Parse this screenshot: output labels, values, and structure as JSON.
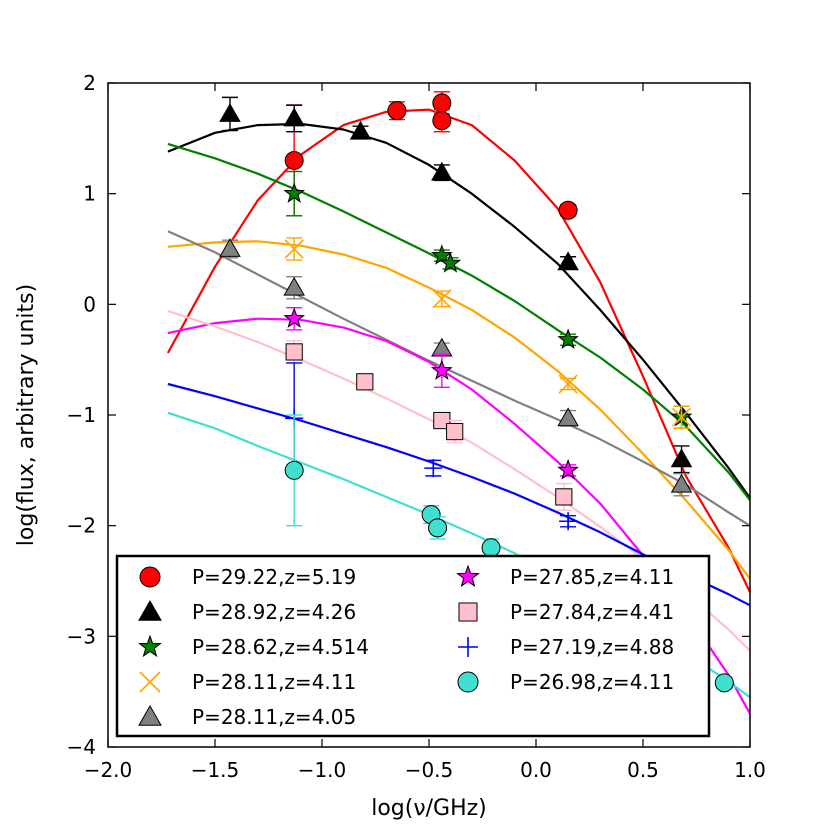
{
  "chart_data": {
    "type": "scatter",
    "xlabel": "log(ν/GHz)",
    "ylabel": "log(flux, arbitrary units)",
    "xlim": [
      -2.0,
      1.0
    ],
    "ylim": [
      -4,
      2
    ],
    "x_ticks": [
      "−2.0",
      "−1.5",
      "−1.0",
      "−0.5",
      "0.0",
      "0.5",
      "1.0"
    ],
    "x_tick_values": [
      -2.0,
      -1.5,
      -1.0,
      -0.5,
      0.0,
      0.5,
      1.0
    ],
    "y_ticks": [
      "−4",
      "−3",
      "−2",
      "−1",
      "0",
      "1",
      "2"
    ],
    "y_tick_values": [
      -4,
      -3,
      -2,
      -1,
      0,
      1,
      2
    ],
    "grid": false,
    "legend_position": "lower-center",
    "series": [
      {
        "name": "P=29.22,z=5.19",
        "marker": "circle",
        "color": "#ff0000",
        "points": [
          [
            -1.13,
            1.3,
            0.5
          ],
          [
            -0.65,
            1.75,
            0.08
          ],
          [
            -0.44,
            1.82,
            0.1
          ],
          [
            -0.44,
            1.66,
            0.1
          ],
          [
            0.15,
            0.85,
            0.05
          ]
        ],
        "curve": [
          [
            -1.72,
            -0.44
          ],
          [
            -1.5,
            0.34
          ],
          [
            -1.3,
            0.94
          ],
          [
            -1.1,
            1.35
          ],
          [
            -0.9,
            1.62
          ],
          [
            -0.7,
            1.74
          ],
          [
            -0.5,
            1.76
          ],
          [
            -0.3,
            1.62
          ],
          [
            -0.1,
            1.3
          ],
          [
            0.1,
            0.87
          ],
          [
            0.3,
            0.2
          ],
          [
            0.5,
            -0.65
          ],
          [
            0.7,
            -1.55
          ],
          [
            0.9,
            -2.2
          ],
          [
            1.0,
            -2.6
          ]
        ]
      },
      {
        "name": "P=28.92,z=4.26",
        "marker": "triangle",
        "color": "#000000",
        "points": [
          [
            -1.43,
            1.72,
            0.15
          ],
          [
            -1.13,
            1.68,
            0.12
          ],
          [
            -0.82,
            1.56,
            0.05
          ],
          [
            -0.44,
            1.19,
            0.07
          ],
          [
            0.15,
            0.38,
            0.05
          ],
          [
            0.68,
            -1.4,
            0.12
          ]
        ],
        "curve": [
          [
            -1.72,
            1.38
          ],
          [
            -1.5,
            1.55
          ],
          [
            -1.3,
            1.62
          ],
          [
            -1.1,
            1.63
          ],
          [
            -0.9,
            1.58
          ],
          [
            -0.7,
            1.46
          ],
          [
            -0.5,
            1.26
          ],
          [
            -0.3,
            1.0
          ],
          [
            -0.1,
            0.7
          ],
          [
            0.1,
            0.37
          ],
          [
            0.3,
            -0.05
          ],
          [
            0.5,
            -0.5
          ],
          [
            0.7,
            -0.98
          ],
          [
            0.9,
            -1.48
          ],
          [
            1.0,
            -1.75
          ]
        ]
      },
      {
        "name": "P=28.62,z=4.514",
        "marker": "star",
        "color": "#008000",
        "points": [
          [
            -1.13,
            1.0,
            0.2
          ],
          [
            -0.44,
            0.44,
            0.05
          ],
          [
            -0.4,
            0.37,
            0.05
          ],
          [
            0.15,
            -0.32,
            0.05
          ],
          [
            0.68,
            -1.02,
            0.1
          ]
        ],
        "curve": [
          [
            -1.72,
            1.45
          ],
          [
            -1.5,
            1.32
          ],
          [
            -1.3,
            1.18
          ],
          [
            -1.1,
            1.02
          ],
          [
            -0.9,
            0.84
          ],
          [
            -0.7,
            0.65
          ],
          [
            -0.5,
            0.46
          ],
          [
            -0.3,
            0.26
          ],
          [
            -0.1,
            0.03
          ],
          [
            0.1,
            -0.23
          ],
          [
            0.3,
            -0.48
          ],
          [
            0.5,
            -0.77
          ],
          [
            0.7,
            -1.1
          ],
          [
            0.9,
            -1.52
          ],
          [
            1.0,
            -1.77
          ]
        ]
      },
      {
        "name": "P=28.11,z=4.11",
        "marker": "x",
        "color": "#ffa500",
        "points": [
          [
            -1.13,
            0.5,
            0.1
          ],
          [
            -0.44,
            0.05,
            0.07
          ],
          [
            0.15,
            -0.72,
            0.05
          ],
          [
            0.68,
            -1.02,
            0.1
          ]
        ],
        "curve": [
          [
            -1.72,
            0.52
          ],
          [
            -1.5,
            0.56
          ],
          [
            -1.3,
            0.57
          ],
          [
            -1.1,
            0.53
          ],
          [
            -0.9,
            0.45
          ],
          [
            -0.7,
            0.33
          ],
          [
            -0.5,
            0.15
          ],
          [
            -0.3,
            -0.05
          ],
          [
            -0.1,
            -0.3
          ],
          [
            0.1,
            -0.6
          ],
          [
            0.3,
            -0.95
          ],
          [
            0.5,
            -1.35
          ],
          [
            0.7,
            -1.77
          ],
          [
            0.9,
            -2.22
          ],
          [
            1.0,
            -2.48
          ]
        ]
      },
      {
        "name": "P=28.11,z=4.05",
        "marker": "triangle",
        "color": "#808080",
        "points": [
          [
            -1.43,
            0.5,
            0.08
          ],
          [
            -1.13,
            0.15,
            0.1
          ],
          [
            -0.44,
            -0.4,
            0.05
          ],
          [
            0.15,
            -1.03,
            0.07
          ],
          [
            0.68,
            -1.63,
            0.1
          ]
        ],
        "curve": [
          [
            -1.72,
            0.66
          ],
          [
            -1.5,
            0.47
          ],
          [
            -1.3,
            0.27
          ],
          [
            -1.1,
            0.07
          ],
          [
            -0.9,
            -0.13
          ],
          [
            -0.7,
            -0.32
          ],
          [
            -0.5,
            -0.51
          ],
          [
            -0.3,
            -0.69
          ],
          [
            -0.1,
            -0.87
          ],
          [
            0.1,
            -1.04
          ],
          [
            0.3,
            -1.22
          ],
          [
            0.5,
            -1.42
          ],
          [
            0.7,
            -1.63
          ],
          [
            0.9,
            -1.88
          ],
          [
            1.0,
            -2.0
          ]
        ]
      },
      {
        "name": "P=27.85,z=4.11",
        "marker": "star",
        "color": "#ff00ff",
        "points": [
          [
            -1.13,
            -0.13,
            0.1
          ],
          [
            -0.44,
            -0.6,
            0.15
          ],
          [
            0.15,
            -1.5,
            0.05
          ]
        ],
        "curve": [
          [
            -1.72,
            -0.26
          ],
          [
            -1.5,
            -0.17
          ],
          [
            -1.3,
            -0.13
          ],
          [
            -1.1,
            -0.14
          ],
          [
            -0.9,
            -0.21
          ],
          [
            -0.7,
            -0.33
          ],
          [
            -0.5,
            -0.52
          ],
          [
            -0.3,
            -0.77
          ],
          [
            -0.1,
            -1.08
          ],
          [
            0.1,
            -1.42
          ],
          [
            0.3,
            -1.8
          ],
          [
            0.5,
            -2.27
          ],
          [
            0.7,
            -2.78
          ],
          [
            0.9,
            -3.35
          ],
          [
            1.0,
            -3.7
          ]
        ]
      },
      {
        "name": "P=27.84,z=4.41",
        "marker": "square",
        "color": "#ffc0cb",
        "points": [
          [
            -1.13,
            -0.43,
            0.1
          ],
          [
            -0.8,
            -0.7,
            0.05
          ],
          [
            -0.44,
            -1.05,
            0.07
          ],
          [
            -0.38,
            -1.15,
            0.1
          ],
          [
            0.13,
            -1.74,
            0.12
          ]
        ],
        "curve": [
          [
            -1.72,
            -0.06
          ],
          [
            -1.5,
            -0.2
          ],
          [
            -1.3,
            -0.34
          ],
          [
            -1.1,
            -0.5
          ],
          [
            -0.9,
            -0.67
          ],
          [
            -0.7,
            -0.85
          ],
          [
            -0.5,
            -1.04
          ],
          [
            -0.3,
            -1.25
          ],
          [
            -0.1,
            -1.49
          ],
          [
            0.1,
            -1.74
          ],
          [
            0.3,
            -2.01
          ],
          [
            0.5,
            -2.3
          ],
          [
            0.7,
            -2.6
          ],
          [
            0.9,
            -2.94
          ],
          [
            1.0,
            -3.13
          ]
        ]
      },
      {
        "name": "P=27.19,z=4.88",
        "marker": "plus",
        "color": "#0000ff",
        "points": [
          [
            -1.13,
            -1.03,
            0.5
          ],
          [
            -0.48,
            -1.48,
            0.07
          ],
          [
            0.15,
            -1.96,
            0.05
          ]
        ],
        "curve": [
          [
            -1.72,
            -0.72
          ],
          [
            -1.5,
            -0.83
          ],
          [
            -1.3,
            -0.94
          ],
          [
            -1.1,
            -1.05
          ],
          [
            -0.9,
            -1.17
          ],
          [
            -0.7,
            -1.29
          ],
          [
            -0.5,
            -1.42
          ],
          [
            -0.3,
            -1.56
          ],
          [
            -0.1,
            -1.71
          ],
          [
            0.1,
            -1.88
          ],
          [
            0.3,
            -2.06
          ],
          [
            0.5,
            -2.26
          ],
          [
            0.7,
            -2.44
          ],
          [
            0.9,
            -2.62
          ],
          [
            1.0,
            -2.72
          ]
        ]
      },
      {
        "name": "P=26.98,z=4.11",
        "marker": "circle",
        "color": "#40e0d0",
        "points": [
          [
            -1.13,
            -1.5,
            0.5
          ],
          [
            -0.49,
            -1.9,
            0.08
          ],
          [
            -0.46,
            -2.02,
            0.1
          ],
          [
            -0.21,
            -2.2,
            0.08
          ],
          [
            0.88,
            -3.42,
            0.05
          ]
        ],
        "curve": [
          [
            -1.72,
            -0.98
          ],
          [
            -1.5,
            -1.12
          ],
          [
            -1.3,
            -1.28
          ],
          [
            -1.1,
            -1.43
          ],
          [
            -0.9,
            -1.58
          ],
          [
            -0.7,
            -1.74
          ],
          [
            -0.5,
            -1.9
          ],
          [
            -0.3,
            -2.07
          ],
          [
            -0.1,
            -2.25
          ],
          [
            0.1,
            -2.45
          ],
          [
            0.3,
            -2.67
          ],
          [
            0.5,
            -2.9
          ],
          [
            0.7,
            -3.15
          ],
          [
            0.9,
            -3.41
          ],
          [
            1.0,
            -3.55
          ]
        ]
      }
    ]
  }
}
